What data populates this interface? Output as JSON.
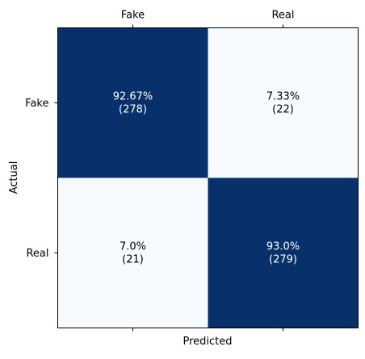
{
  "chart_data": {
    "type": "heatmap",
    "xlabel": "Predicted",
    "ylabel": "Actual",
    "x_categories": [
      "Fake",
      "Real"
    ],
    "y_categories": [
      "Fake",
      "Real"
    ],
    "x_ticks_position": "top",
    "grid": false,
    "colormap": {
      "low": "#f7fbff",
      "high": "#08306b"
    },
    "cells": [
      [
        {
          "percent_label": "92.67%",
          "count_label": "(278)",
          "count": 278,
          "text_color": "#ffffff",
          "fill": "#08306b"
        },
        {
          "percent_label": "7.33%",
          "count_label": "(22)",
          "count": 22,
          "text_color": "#000000",
          "fill": "#f7fbff"
        }
      ],
      [
        {
          "percent_label": "7.0%",
          "count_label": "(21)",
          "count": 21,
          "text_color": "#000000",
          "fill": "#f7fbff"
        },
        {
          "percent_label": "93.0%",
          "count_label": "(279)",
          "count": 279,
          "text_color": "#ffffff",
          "fill": "#08306b"
        }
      ]
    ]
  }
}
